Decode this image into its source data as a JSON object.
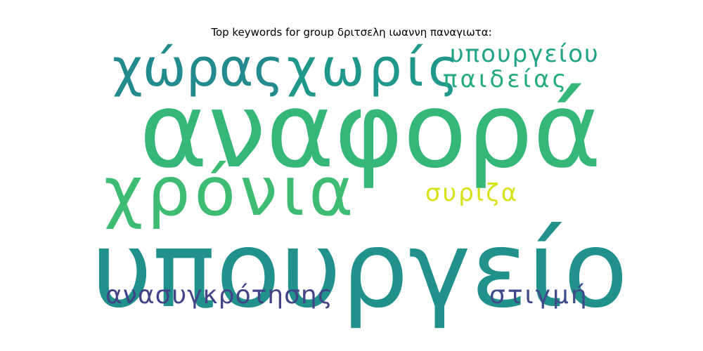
{
  "chart_data": {
    "type": "wordcloud",
    "title": "Top keywords for group δριτσελη ιωαννη παναγιωτα:",
    "words": [
      {
        "text": "αναφορά",
        "weight": 100,
        "color": "#35b779"
      },
      {
        "text": "υπουργείο",
        "weight": 98,
        "color": "#21918c"
      },
      {
        "text": "χρόνια",
        "weight": 68,
        "color": "#3fbc73"
      },
      {
        "text": "χώρας",
        "weight": 52,
        "color": "#238a8d"
      },
      {
        "text": "χωρίς",
        "weight": 52,
        "color": "#1f988b"
      },
      {
        "text": "υπουργείου",
        "weight": 22,
        "color": "#20a386"
      },
      {
        "text": "παιδείας",
        "weight": 22,
        "color": "#25ab82"
      },
      {
        "text": "συριζα",
        "weight": 21,
        "color": "#d8e219"
      },
      {
        "text": "ανασυγκρότησης",
        "weight": 22,
        "color": "#414487"
      },
      {
        "text": "στιγμή",
        "weight": 22,
        "color": "#3e4a89"
      }
    ]
  }
}
